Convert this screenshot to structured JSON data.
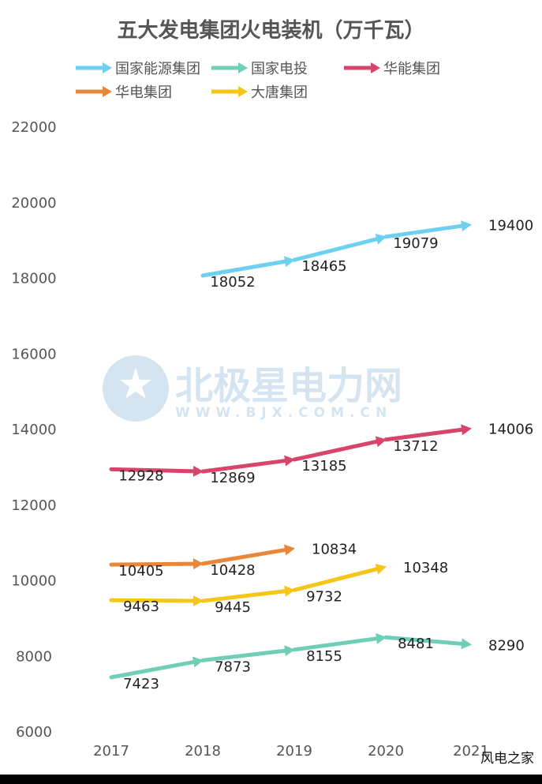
{
  "chart_data": {
    "type": "line",
    "title": "五大发电集团火电装机（万千瓦）",
    "categories": [
      "2017",
      "2018",
      "2019",
      "2020",
      "2021"
    ],
    "ylim": [
      6000,
      22000
    ],
    "yticks": [
      6000,
      8000,
      10000,
      12000,
      14000,
      16000,
      18000,
      20000,
      22000
    ],
    "grid": false,
    "legend_position": "top",
    "series": [
      {
        "name": "国家能源集团",
        "color": "#6ed0f0",
        "values": [
          null,
          18052,
          18465,
          19079,
          19400
        ]
      },
      {
        "name": "国家电投",
        "color": "#6fcfb6",
        "values": [
          7423,
          7873,
          8155,
          8481,
          8290
        ]
      },
      {
        "name": "华能集团",
        "color": "#d9456a",
        "values": [
          12928,
          12869,
          13185,
          13712,
          14006
        ]
      },
      {
        "name": "华电集团",
        "color": "#e8873a",
        "values": [
          10405,
          10428,
          10834,
          null,
          null
        ]
      },
      {
        "name": "大唐集团",
        "color": "#f5c518",
        "values": [
          9463,
          9445,
          9732,
          10348,
          null
        ]
      }
    ]
  },
  "watermark": {
    "name": "北极星电力网",
    "url": "WWW.BJX.COM.CN"
  },
  "footer": "风电之家"
}
